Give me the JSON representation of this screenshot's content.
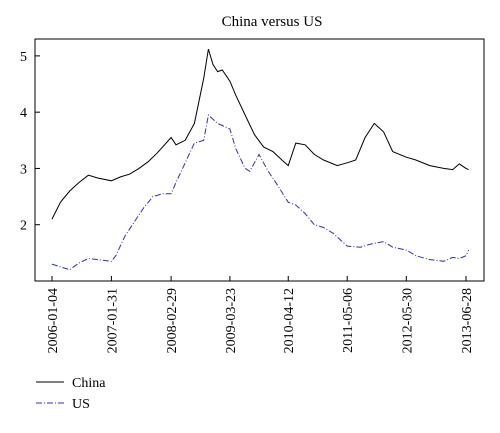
{
  "chart_data": {
    "type": "line",
    "title": "China versus US",
    "xlabel": "",
    "ylabel": "",
    "x_ticks": [
      "2006-01-04",
      "2007-01-31",
      "2008-02-29",
      "2009-03-23",
      "2010-04-12",
      "2011-05-06",
      "2012-05-30",
      "2013-06-28"
    ],
    "ylim": [
      1.0,
      5.3
    ],
    "y_ticks": [
      2,
      3,
      4,
      5
    ],
    "grid": false,
    "legend_position": "bottom-left",
    "series": [
      {
        "name": "China",
        "color": "#000000",
        "style": "solid",
        "points": [
          [
            "2006-01-04",
            2.1
          ],
          [
            "2006-03-01",
            2.4
          ],
          [
            "2006-05-01",
            2.6
          ],
          [
            "2006-07-01",
            2.75
          ],
          [
            "2006-09-01",
            2.88
          ],
          [
            "2006-11-01",
            2.83
          ],
          [
            "2007-01-31",
            2.78
          ],
          [
            "2007-04-01",
            2.85
          ],
          [
            "2007-06-01",
            2.9
          ],
          [
            "2007-08-01",
            3.0
          ],
          [
            "2007-10-01",
            3.12
          ],
          [
            "2007-12-01",
            3.28
          ],
          [
            "2008-02-29",
            3.55
          ],
          [
            "2008-04-01",
            3.42
          ],
          [
            "2008-06-01",
            3.5
          ],
          [
            "2008-08-01",
            3.8
          ],
          [
            "2008-10-01",
            4.6
          ],
          [
            "2008-11-01",
            5.12
          ],
          [
            "2008-12-01",
            4.85
          ],
          [
            "2009-01-01",
            4.72
          ],
          [
            "2009-02-01",
            4.75
          ],
          [
            "2009-03-23",
            4.55
          ],
          [
            "2009-05-01",
            4.3
          ],
          [
            "2009-07-01",
            3.95
          ],
          [
            "2009-09-01",
            3.6
          ],
          [
            "2009-11-01",
            3.38
          ],
          [
            "2010-01-01",
            3.3
          ],
          [
            "2010-03-01",
            3.15
          ],
          [
            "2010-04-12",
            3.05
          ],
          [
            "2010-06-01",
            3.45
          ],
          [
            "2010-08-01",
            3.42
          ],
          [
            "2010-10-01",
            3.25
          ],
          [
            "2010-12-01",
            3.15
          ],
          [
            "2011-03-01",
            3.05
          ],
          [
            "2011-05-06",
            3.1
          ],
          [
            "2011-07-01",
            3.15
          ],
          [
            "2011-09-01",
            3.55
          ],
          [
            "2011-11-01",
            3.8
          ],
          [
            "2012-01-01",
            3.65
          ],
          [
            "2012-03-01",
            3.3
          ],
          [
            "2012-05-30",
            3.2
          ],
          [
            "2012-08-01",
            3.15
          ],
          [
            "2012-11-01",
            3.05
          ],
          [
            "2013-02-01",
            3.0
          ],
          [
            "2013-04-01",
            2.98
          ],
          [
            "2013-05-15",
            3.08
          ],
          [
            "2013-06-28",
            3.0
          ],
          [
            "2013-07-15",
            2.98
          ]
        ]
      },
      {
        "name": "US",
        "color": "#3333aa",
        "style": "dashdot",
        "points": [
          [
            "2006-01-04",
            1.3
          ],
          [
            "2006-03-01",
            1.25
          ],
          [
            "2006-05-01",
            1.2
          ],
          [
            "2006-07-01",
            1.32
          ],
          [
            "2006-09-01",
            1.4
          ],
          [
            "2006-11-01",
            1.38
          ],
          [
            "2007-01-31",
            1.35
          ],
          [
            "2007-03-01",
            1.45
          ],
          [
            "2007-05-01",
            1.8
          ],
          [
            "2007-07-01",
            2.05
          ],
          [
            "2007-09-01",
            2.3
          ],
          [
            "2007-11-01",
            2.5
          ],
          [
            "2008-01-01",
            2.55
          ],
          [
            "2008-02-29",
            2.55
          ],
          [
            "2008-04-01",
            2.75
          ],
          [
            "2008-06-01",
            3.1
          ],
          [
            "2008-08-01",
            3.45
          ],
          [
            "2008-10-01",
            3.5
          ],
          [
            "2008-11-01",
            3.95
          ],
          [
            "2009-01-01",
            3.8
          ],
          [
            "2009-03-23",
            3.7
          ],
          [
            "2009-05-01",
            3.35
          ],
          [
            "2009-07-01",
            3.0
          ],
          [
            "2009-08-01",
            2.95
          ],
          [
            "2009-10-01",
            3.25
          ],
          [
            "2009-12-01",
            2.95
          ],
          [
            "2010-02-01",
            2.7
          ],
          [
            "2010-04-12",
            2.4
          ],
          [
            "2010-06-01",
            2.35
          ],
          [
            "2010-08-01",
            2.2
          ],
          [
            "2010-10-01",
            2.0
          ],
          [
            "2010-12-01",
            1.95
          ],
          [
            "2011-02-01",
            1.85
          ],
          [
            "2011-05-06",
            1.62
          ],
          [
            "2011-08-01",
            1.6
          ],
          [
            "2011-10-01",
            1.65
          ],
          [
            "2012-01-01",
            1.7
          ],
          [
            "2012-03-01",
            1.6
          ],
          [
            "2012-05-30",
            1.55
          ],
          [
            "2012-08-01",
            1.45
          ],
          [
            "2012-11-01",
            1.38
          ],
          [
            "2013-02-01",
            1.35
          ],
          [
            "2013-04-01",
            1.42
          ],
          [
            "2013-05-15",
            1.4
          ],
          [
            "2013-06-28",
            1.45
          ],
          [
            "2013-07-15",
            1.55
          ]
        ]
      }
    ]
  }
}
